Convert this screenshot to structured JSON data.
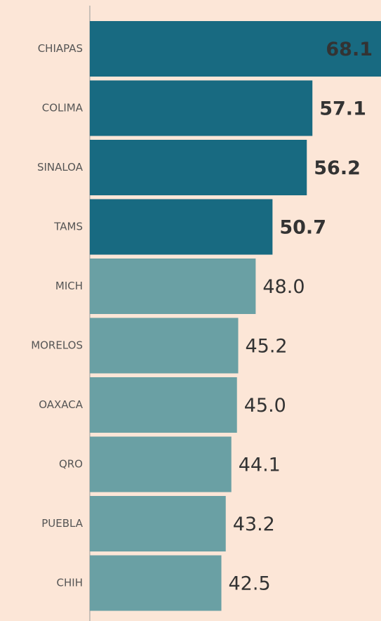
{
  "chart_data": {
    "type": "hbar",
    "categories": [
      "CHIAPAS",
      "COLIMA",
      "SINALOA",
      "TAMS",
      "MICH",
      "MORELOS",
      "OAXACA",
      "QRO",
      "PUEBLA",
      "CHIH"
    ],
    "values": [
      68.1,
      57.1,
      56.2,
      50.7,
      48.0,
      45.2,
      45.0,
      44.1,
      43.2,
      42.5
    ],
    "value_labels": [
      "68.1",
      "57.1",
      "56.2",
      "50.7",
      "48.0",
      "45.2",
      "45.0",
      "44.1",
      "43.2",
      "42.5"
    ],
    "colors": [
      "#186a81",
      "#186a81",
      "#186a81",
      "#186a81",
      "#6aa0a4",
      "#6aa0a4",
      "#6aa0a4",
      "#6aa0a4",
      "#6aa0a4",
      "#6aa0a4"
    ],
    "xlim": [
      21.4,
      68.1
    ]
  }
}
